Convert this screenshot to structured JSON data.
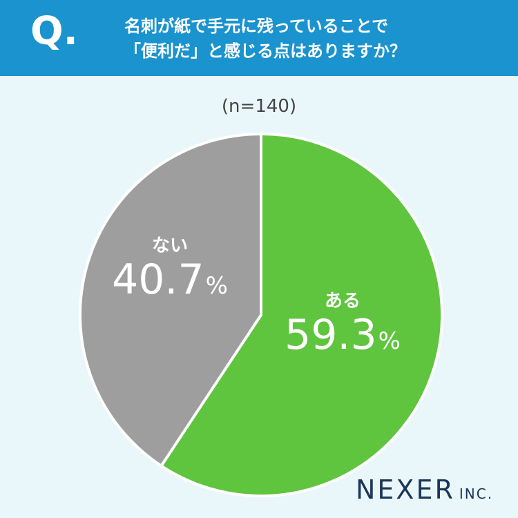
{
  "header": {
    "q_mark": "Q.",
    "question_line1": "名刺が紙で手元に残っていることで",
    "question_line2": "「便利だ」と感じる点はありますか？"
  },
  "chart_data": {
    "type": "pie",
    "sample_label": "(n=140)",
    "slices": [
      {
        "label": "ある",
        "value": 59.3,
        "display": "59.3",
        "unit": "%",
        "color": "#5fc43e"
      },
      {
        "label": "ない",
        "value": 40.7,
        "display": "40.7",
        "unit": "%",
        "color": "#9e9e9e"
      }
    ]
  },
  "colors": {
    "header_bg": "#1a93cf",
    "page_bg": "#e9f7fb",
    "logo_text": "#1d3557"
  },
  "logo": {
    "main": "NEXER",
    "inc": "INC."
  }
}
